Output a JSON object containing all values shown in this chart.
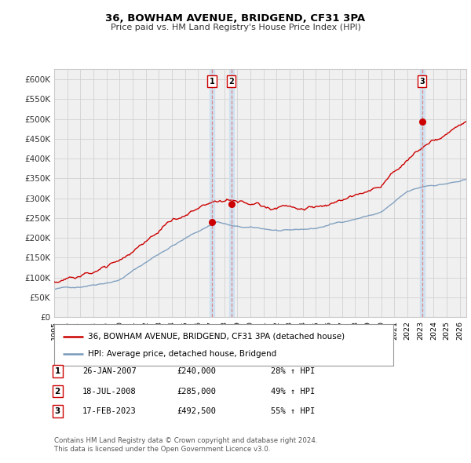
{
  "title": "36, BOWHAM AVENUE, BRIDGEND, CF31 3PA",
  "subtitle": "Price paid vs. HM Land Registry's House Price Index (HPI)",
  "legend_property": "36, BOWHAM AVENUE, BRIDGEND, CF31 3PA (detached house)",
  "legend_hpi": "HPI: Average price, detached house, Bridgend",
  "footer1": "Contains HM Land Registry data © Crown copyright and database right 2024.",
  "footer2": "This data is licensed under the Open Government Licence v3.0.",
  "sales": [
    {
      "label": "1",
      "date": "26-JAN-2007",
      "price": 240000,
      "hpi_pct": "28% ↑ HPI",
      "date_num": 2007.07
    },
    {
      "label": "2",
      "date": "18-JUL-2008",
      "price": 285000,
      "hpi_pct": "49% ↑ HPI",
      "date_num": 2008.54
    },
    {
      "label": "3",
      "date": "17-FEB-2023",
      "price": 492500,
      "hpi_pct": "55% ↑ HPI",
      "date_num": 2023.12
    }
  ],
  "property_color": "#cc0000",
  "hpi_color": "#7799bb",
  "sale_marker_color": "#cc0000",
  "vline_color": "#dd8888",
  "vregion_color": "#cce0f0",
  "ylabel_color": "#333333",
  "grid_color": "#cccccc",
  "ylim": [
    0,
    625000
  ],
  "xlim_start": 1995.0,
  "xlim_end": 2026.5,
  "background_color": "#ffffff",
  "plot_bg_color": "#f0f0f0"
}
